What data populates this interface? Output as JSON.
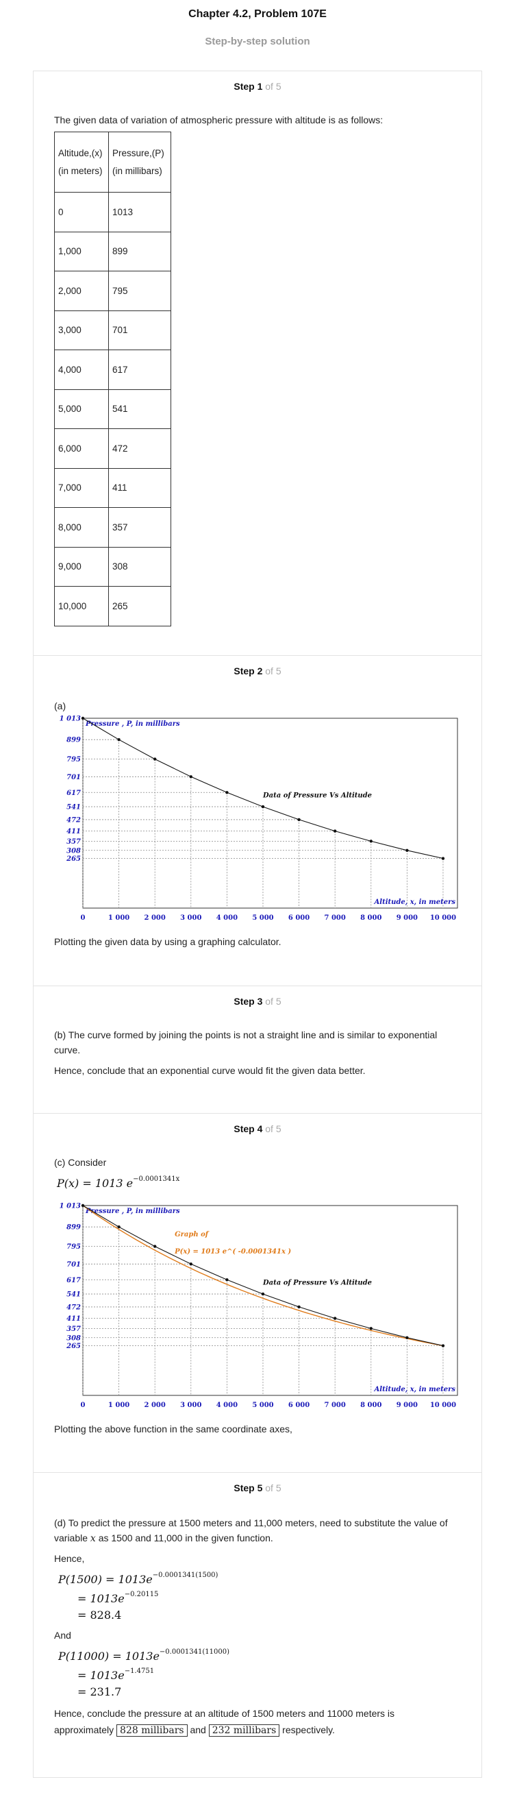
{
  "header": {
    "title": "Chapter 4.2, Problem 107E",
    "subtitle": "Step-by-step solution"
  },
  "steps": [
    {
      "label": "Step 1",
      "of": "of 5"
    },
    {
      "label": "Step 2",
      "of": "of 5"
    },
    {
      "label": "Step 3",
      "of": "of 5"
    },
    {
      "label": "Step 4",
      "of": "of 5"
    },
    {
      "label": "Step 5",
      "of": "of 5"
    }
  ],
  "step1": {
    "intro": "The given data of variation of atmospheric pressure with altitude is as follows:",
    "table": {
      "head1a": "Altitude,(x)",
      "head1b": "(in meters)",
      "head2a": "Pressure,(P)",
      "head2b": "(in millibars)",
      "rows": [
        [
          "0",
          "1013"
        ],
        [
          "1,000",
          "899"
        ],
        [
          "2,000",
          "795"
        ],
        [
          "3,000",
          "701"
        ],
        [
          "4,000",
          "617"
        ],
        [
          "5,000",
          "541"
        ],
        [
          "6,000",
          "472"
        ],
        [
          "7,000",
          "411"
        ],
        [
          "8,000",
          "357"
        ],
        [
          "9,000",
          "308"
        ],
        [
          "10,000",
          "265"
        ]
      ]
    }
  },
  "step2": {
    "part": "(a)",
    "caption": "Plotting the given data by using a graphing calculator."
  },
  "step3": {
    "line1": "(b) The curve formed by joining the points is not a straight line and is similar to exponential",
    "line2": "curve.",
    "line3": "Hence, conclude that an exponential curve would fit the given data better."
  },
  "step4": {
    "part": "(c) Consider",
    "func_lhs": "P(x) = 1013 e",
    "func_exp": "−0.0001341x",
    "caption": "Plotting the above function in the same coordinate axes,"
  },
  "step5": {
    "line1": "(d) To predict the pressure at 1500 meters and 11,000 meters, need to substitute the value of",
    "line2a": "variable",
    "line2var": "x",
    "line2b": "as 1500 and 11,000 in the given function.",
    "hence": "Hence,",
    "eq1a_lhs": "P(1500) = 1013e",
    "eq1a_exp": "−0.0001341(1500)",
    "eq1b": "= 1013e",
    "eq1b_exp": "−0.20115",
    "eq1c": "= 828.4",
    "and": "And",
    "eq2a_lhs": "P(11000) = 1013e",
    "eq2a_exp": "−0.0001341(11000)",
    "eq2b": "= 1013e",
    "eq2b_exp": "−1.4751",
    "eq2c": "= 231.7",
    "conclusion1": "Hence, conclude the pressure at an altitude of 1500 meters and 11000 meters is",
    "conclusion2a": "approximately",
    "box1": "828 millibars",
    "conclusion2b": "and",
    "box2": "232 millibars",
    "conclusion2c": "respectively."
  },
  "chart_data": [
    {
      "type": "scatter",
      "title": "",
      "annotation": "Data of Pressure Vs Altitude",
      "xlabel": "Altitude, x, in meters",
      "ylabel": "Pressure , P, in millibars",
      "x": [
        0,
        1000,
        2000,
        3000,
        4000,
        5000,
        6000,
        7000,
        8000,
        9000,
        10000
      ],
      "y": [
        1013,
        899,
        795,
        701,
        617,
        541,
        472,
        411,
        357,
        308,
        265
      ],
      "xticks": [
        "0",
        "1 000",
        "2 000",
        "3 000",
        "4 000",
        "5 000",
        "6 000",
        "7 000",
        "8 000",
        "9 000",
        "10 000"
      ],
      "yticks": [
        "1 013",
        "899",
        "795",
        "701",
        "617",
        "541",
        "472",
        "411",
        "357",
        "308",
        "265"
      ],
      "xlim": [
        0,
        10400
      ],
      "ylim": [
        0,
        1013
      ],
      "grid": true,
      "colors": {
        "axis_labels": "#1a1ab8",
        "data_line": "#111111"
      }
    },
    {
      "type": "line",
      "title": "",
      "annotation": "Data of Pressure Vs Altitude",
      "function_label_1": "Graph of",
      "function_label_2": "P(x) = 1013 e^( -0.0001341x )",
      "xlabel": "Altitude, x, in meters",
      "ylabel": "Pressure , P, in millibars",
      "x": [
        0,
        1000,
        2000,
        3000,
        4000,
        5000,
        6000,
        7000,
        8000,
        9000,
        10000
      ],
      "y": [
        1013,
        899,
        795,
        701,
        617,
        541,
        472,
        411,
        357,
        308,
        265
      ],
      "function": {
        "a": 1013,
        "k": -0.0001341
      },
      "xticks": [
        "0",
        "1 000",
        "2 000",
        "3 000",
        "4 000",
        "5 000",
        "6 000",
        "7 000",
        "8 000",
        "9 000",
        "10 000"
      ],
      "yticks": [
        "1 013",
        "899",
        "795",
        "701",
        "617",
        "541",
        "472",
        "411",
        "357",
        "308",
        "265"
      ],
      "xlim": [
        0,
        10400
      ],
      "ylim": [
        0,
        1013
      ],
      "grid": true,
      "colors": {
        "axis_labels": "#1a1ab8",
        "data_line": "#111111",
        "function_line": "#e07b1a"
      }
    }
  ]
}
